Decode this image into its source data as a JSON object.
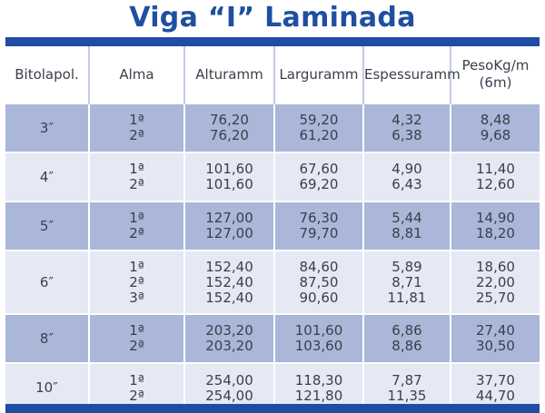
{
  "title": "Viga “I” Laminada",
  "headers": [
    {
      "line1": "Bitola",
      "line2": "pol."
    },
    {
      "line1": "Alma",
      "line2": ""
    },
    {
      "line1": "Altura",
      "line2": "mm"
    },
    {
      "line1": "Largura",
      "line2": "mm"
    },
    {
      "line1": "Espessura",
      "line2": "mm"
    },
    {
      "line1": "Peso",
      "line2": "Kg/m (6m)"
    }
  ],
  "rows": [
    {
      "bitola": "3″",
      "alma": [
        "1ª",
        "2ª"
      ],
      "altura": [
        "76,20",
        "76,20"
      ],
      "largura": [
        "59,20",
        "61,20"
      ],
      "espessura": [
        "4,32",
        "6,38"
      ],
      "peso": [
        "8,48",
        "9,68"
      ]
    },
    {
      "bitola": "4″",
      "alma": [
        "1ª",
        "2ª"
      ],
      "altura": [
        "101,60",
        "101,60"
      ],
      "largura": [
        "67,60",
        "69,20"
      ],
      "espessura": [
        "4,90",
        "6,43"
      ],
      "peso": [
        "11,40",
        "12,60"
      ]
    },
    {
      "bitola": "5″",
      "alma": [
        "1ª",
        "2ª"
      ],
      "altura": [
        "127,00",
        "127,00"
      ],
      "largura": [
        "76,30",
        "79,70"
      ],
      "espessura": [
        "5,44",
        "8,81"
      ],
      "peso": [
        "14,90",
        "18,20"
      ]
    },
    {
      "bitola": "6″",
      "alma": [
        "1ª",
        "2ª",
        "3ª"
      ],
      "altura": [
        "152,40",
        "152,40",
        "152,40"
      ],
      "largura": [
        "84,60",
        "87,50",
        "90,60"
      ],
      "espessura": [
        "5,89",
        "8,71",
        "11,81"
      ],
      "peso": [
        "18,60",
        "22,00",
        "25,70"
      ]
    },
    {
      "bitola": "8″",
      "alma": [
        "1ª",
        "2ª"
      ],
      "altura": [
        "203,20",
        "203,20"
      ],
      "largura": [
        "101,60",
        "103,60"
      ],
      "espessura": [
        "6,86",
        "8,86"
      ],
      "peso": [
        "27,40",
        "30,50"
      ]
    },
    {
      "bitola": "10″",
      "alma": [
        "1ª",
        "2ª"
      ],
      "altura": [
        "254,00",
        "254,00"
      ],
      "largura": [
        "118,30",
        "121,80"
      ],
      "espessura": [
        "7,87",
        "11,35"
      ],
      "peso": [
        "37,70",
        "44,70"
      ]
    }
  ],
  "colors": {
    "title": "#1f4fa0",
    "bar": "#1e4da3",
    "row_shaded": "#aab7d9",
    "row_light": "#e6e9f4"
  }
}
